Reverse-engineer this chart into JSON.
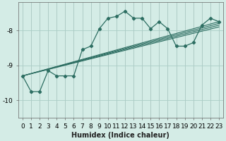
{
  "bg_color": "#d4ece6",
  "grid_color": "#aacdc6",
  "line_color": "#2d6e62",
  "xlabel": "Humidex (Indice chaleur)",
  "ylim": [
    -10.5,
    -7.2
  ],
  "xlim": [
    -0.5,
    23.5
  ],
  "yticks": [
    -10,
    -9,
    -8
  ],
  "xticks": [
    0,
    1,
    2,
    3,
    4,
    5,
    6,
    7,
    8,
    9,
    10,
    11,
    12,
    13,
    14,
    15,
    16,
    17,
    18,
    19,
    20,
    21,
    22,
    23
  ],
  "main_x": [
    0,
    1,
    2,
    3,
    4,
    5,
    6,
    7,
    8,
    9,
    10,
    11,
    12,
    13,
    14,
    15,
    16,
    17,
    18,
    19,
    20,
    21,
    22,
    23
  ],
  "main_y": [
    -9.3,
    -9.75,
    -9.75,
    -9.15,
    -9.3,
    -9.3,
    -9.3,
    -8.55,
    -8.45,
    -7.95,
    -7.65,
    -7.6,
    -7.45,
    -7.65,
    -7.65,
    -7.95,
    -7.75,
    -7.95,
    -8.45,
    -8.45,
    -8.35,
    -7.85,
    -7.65,
    -7.75
  ],
  "straight_lines": [
    {
      "x0": 0,
      "y0": -9.3,
      "x1": 23,
      "y1": -7.75
    },
    {
      "x0": 0,
      "y0": -9.3,
      "x1": 23,
      "y1": -7.8
    },
    {
      "x0": 0,
      "y0": -9.3,
      "x1": 23,
      "y1": -7.85
    },
    {
      "x0": 0,
      "y0": -9.3,
      "x1": 23,
      "y1": -7.9
    }
  ],
  "axis_fontsize": 7,
  "tick_fontsize": 6.5
}
